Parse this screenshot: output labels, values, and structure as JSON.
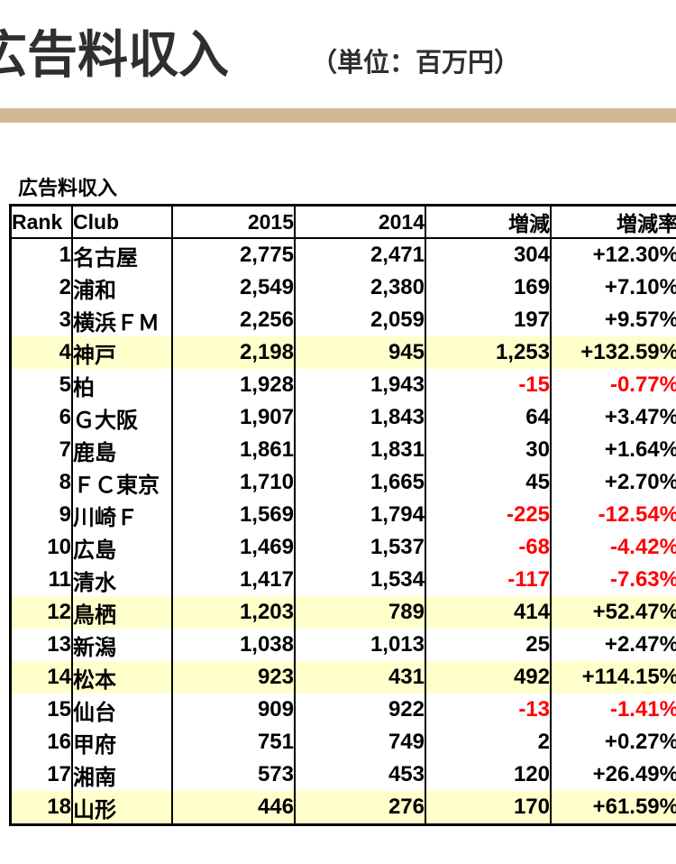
{
  "header": {
    "title": "広告料収入",
    "unit_label": "（単位：百万円）"
  },
  "section": {
    "label": "広告料収入"
  },
  "colors": {
    "accent_bar": "#d2b996",
    "row_highlight": "#ffffcc",
    "negative": "#ff0000",
    "title_text": "#2f2f2f"
  },
  "table": {
    "columns": [
      {
        "key": "rank",
        "label": "Rank"
      },
      {
        "key": "club",
        "label": "Club"
      },
      {
        "key": "y2015",
        "label": "2015"
      },
      {
        "key": "y2014",
        "label": "2014"
      },
      {
        "key": "diff",
        "label": "増減"
      },
      {
        "key": "rate",
        "label": "増減率"
      }
    ],
    "rows": [
      {
        "rank": "1",
        "club": "名古屋",
        "y2015": "2,775",
        "y2014": "2,471",
        "diff": "304",
        "rate": "+12.30%",
        "highlight": false,
        "negative": false
      },
      {
        "rank": "2",
        "club": "浦和",
        "y2015": "2,549",
        "y2014": "2,380",
        "diff": "169",
        "rate": "+7.10%",
        "highlight": false,
        "negative": false
      },
      {
        "rank": "3",
        "club": "横浜ＦＭ",
        "y2015": "2,256",
        "y2014": "2,059",
        "diff": "197",
        "rate": "+9.57%",
        "highlight": false,
        "negative": false
      },
      {
        "rank": "4",
        "club": "神戸",
        "y2015": "2,198",
        "y2014": "945",
        "diff": "1,253",
        "rate": "+132.59%",
        "highlight": true,
        "negative": false
      },
      {
        "rank": "5",
        "club": "柏",
        "y2015": "1,928",
        "y2014": "1,943",
        "diff": "-15",
        "rate": "-0.77%",
        "highlight": false,
        "negative": true
      },
      {
        "rank": "6",
        "club": "Ｇ大阪",
        "y2015": "1,907",
        "y2014": "1,843",
        "diff": "64",
        "rate": "+3.47%",
        "highlight": false,
        "negative": false
      },
      {
        "rank": "7",
        "club": "鹿島",
        "y2015": "1,861",
        "y2014": "1,831",
        "diff": "30",
        "rate": "+1.64%",
        "highlight": false,
        "negative": false
      },
      {
        "rank": "8",
        "club": "ＦＣ東京",
        "y2015": "1,710",
        "y2014": "1,665",
        "diff": "45",
        "rate": "+2.70%",
        "highlight": false,
        "negative": false
      },
      {
        "rank": "9",
        "club": "川崎Ｆ",
        "y2015": "1,569",
        "y2014": "1,794",
        "diff": "-225",
        "rate": "-12.54%",
        "highlight": false,
        "negative": true
      },
      {
        "rank": "10",
        "club": "広島",
        "y2015": "1,469",
        "y2014": "1,537",
        "diff": "-68",
        "rate": "-4.42%",
        "highlight": false,
        "negative": true
      },
      {
        "rank": "11",
        "club": "清水",
        "y2015": "1,417",
        "y2014": "1,534",
        "diff": "-117",
        "rate": "-7.63%",
        "highlight": false,
        "negative": true
      },
      {
        "rank": "12",
        "club": "鳥栖",
        "y2015": "1,203",
        "y2014": "789",
        "diff": "414",
        "rate": "+52.47%",
        "highlight": true,
        "negative": false
      },
      {
        "rank": "13",
        "club": "新潟",
        "y2015": "1,038",
        "y2014": "1,013",
        "diff": "25",
        "rate": "+2.47%",
        "highlight": false,
        "negative": false
      },
      {
        "rank": "14",
        "club": "松本",
        "y2015": "923",
        "y2014": "431",
        "diff": "492",
        "rate": "+114.15%",
        "highlight": true,
        "negative": false
      },
      {
        "rank": "15",
        "club": "仙台",
        "y2015": "909",
        "y2014": "922",
        "diff": "-13",
        "rate": "-1.41%",
        "highlight": false,
        "negative": true
      },
      {
        "rank": "16",
        "club": "甲府",
        "y2015": "751",
        "y2014": "749",
        "diff": "2",
        "rate": "+0.27%",
        "highlight": false,
        "negative": false
      },
      {
        "rank": "17",
        "club": "湘南",
        "y2015": "573",
        "y2014": "453",
        "diff": "120",
        "rate": "+26.49%",
        "highlight": false,
        "negative": false
      },
      {
        "rank": "18",
        "club": "山形",
        "y2015": "446",
        "y2014": "276",
        "diff": "170",
        "rate": "+61.59%",
        "highlight": true,
        "negative": false
      }
    ]
  }
}
